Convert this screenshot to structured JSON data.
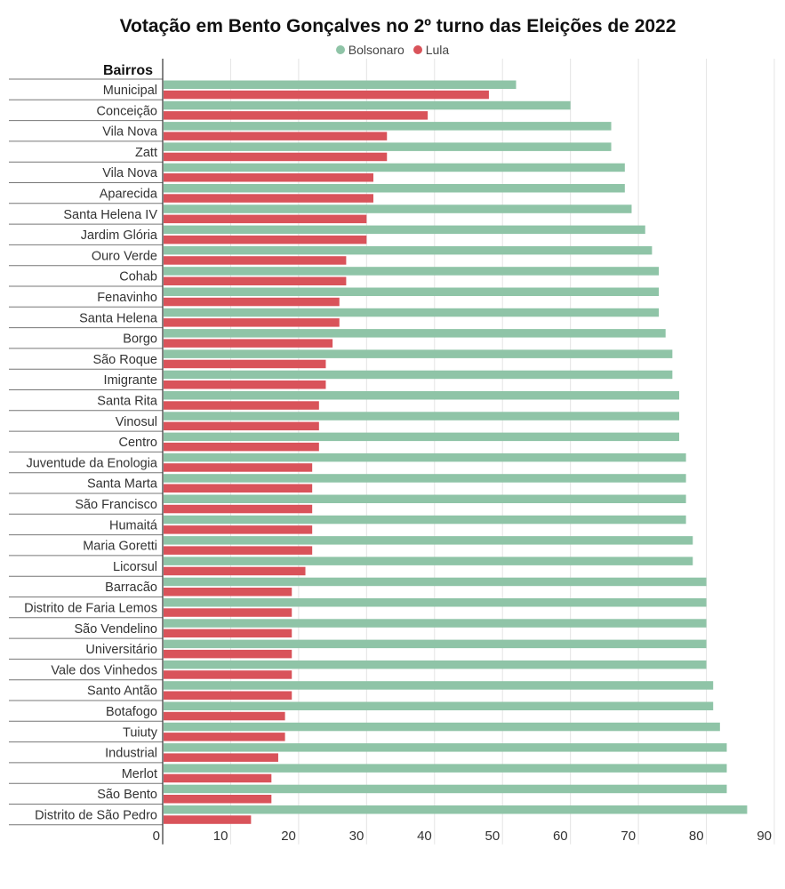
{
  "chart_data": {
    "type": "bar",
    "orientation": "horizontal",
    "title": "Votação em Bento Gonçalves no 2º turno das Eleições de 2022",
    "ylabel": "Bairros",
    "xlabel": "",
    "xlim": [
      0,
      90
    ],
    "xticks": [
      0,
      10,
      20,
      30,
      40,
      50,
      60,
      70,
      80,
      90
    ],
    "grid": true,
    "legend_position": "top-center",
    "categories": [
      "Municipal",
      "Conceição",
      "Vila Nova",
      "Zatt",
      "Vila Nova",
      "Aparecida",
      "Santa Helena IV",
      "Jardim Glória",
      "Ouro Verde",
      "Cohab",
      "Fenavinho",
      "Santa Helena",
      "Borgo",
      "São Roque",
      "Imigrante",
      "Santa Rita",
      "Vinosul",
      "Centro",
      "Juventude da Enologia",
      "Santa Marta",
      "São Francisco",
      "Humaitá",
      "Maria Goretti",
      "Licorsul",
      "Barracão",
      "Distrito de Faria Lemos",
      "São Vendelino",
      "Universitário",
      "Vale dos Vinhedos",
      "Santo Antão",
      "Botafogo",
      "Tuiuty",
      "Industrial",
      "Merlot",
      "São Bento",
      "Distrito de São Pedro"
    ],
    "series": [
      {
        "name": "Bolsonaro",
        "color": "#8fc4a7",
        "values": [
          52,
          60,
          66,
          66,
          68,
          68,
          69,
          71,
          72,
          73,
          73,
          73,
          74,
          75,
          75,
          76,
          76,
          76,
          77,
          77,
          77,
          77,
          78,
          78,
          80,
          80,
          80,
          80,
          80,
          81,
          81,
          82,
          83,
          83,
          83,
          86
        ]
      },
      {
        "name": "Lula",
        "color": "#d9535a",
        "values": [
          48,
          39,
          33,
          33,
          31,
          31,
          30,
          30,
          27,
          27,
          26,
          26,
          25,
          24,
          24,
          23,
          23,
          23,
          22,
          22,
          22,
          22,
          22,
          21,
          19,
          19,
          19,
          19,
          19,
          19,
          18,
          18,
          17,
          16,
          16,
          13
        ]
      }
    ]
  }
}
